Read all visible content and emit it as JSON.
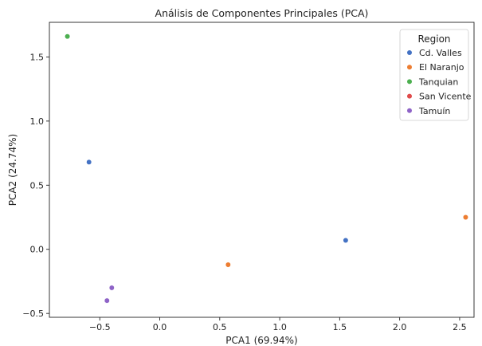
{
  "chart_data": {
    "type": "scatter",
    "title": "Análisis de Componentes Principales (PCA)",
    "xlabel": "PCA1 (69.94%)",
    "ylabel": "PCA2 (24.74%)",
    "xlim": [
      -0.92,
      2.62
    ],
    "ylim": [
      -0.53,
      1.77
    ],
    "xticks": [
      -0.5,
      0.0,
      0.5,
      1.0,
      1.5,
      2.0,
      2.5
    ],
    "xtick_labels": [
      "−0.5",
      "0.0",
      "0.5",
      "1.0",
      "1.5",
      "2.0",
      "2.5"
    ],
    "yticks": [
      -0.5,
      0.0,
      0.5,
      1.0,
      1.5
    ],
    "ytick_labels": [
      "−0.5",
      "0.0",
      "0.5",
      "1.0",
      "1.5"
    ],
    "grid": false,
    "legend": {
      "title": "Region",
      "placement": "top-right"
    },
    "series": [
      {
        "name": "Cd. Valles",
        "color": "#4472c4",
        "points": [
          {
            "x": -0.59,
            "y": 0.68
          },
          {
            "x": 1.55,
            "y": 0.07
          }
        ]
      },
      {
        "name": "El Naranjo",
        "color": "#ed7d31",
        "points": [
          {
            "x": 0.57,
            "y": -0.12
          },
          {
            "x": 2.55,
            "y": 0.25
          }
        ]
      },
      {
        "name": "Tanquian",
        "color": "#4caf50",
        "points": [
          {
            "x": -0.77,
            "y": 1.66
          }
        ]
      },
      {
        "name": "San Vicente",
        "color": "#e04b4b",
        "points": []
      },
      {
        "name": "Tamuín",
        "color": "#8e63c7",
        "points": [
          {
            "x": -0.4,
            "y": -0.3
          },
          {
            "x": -0.44,
            "y": -0.4
          }
        ]
      }
    ]
  }
}
